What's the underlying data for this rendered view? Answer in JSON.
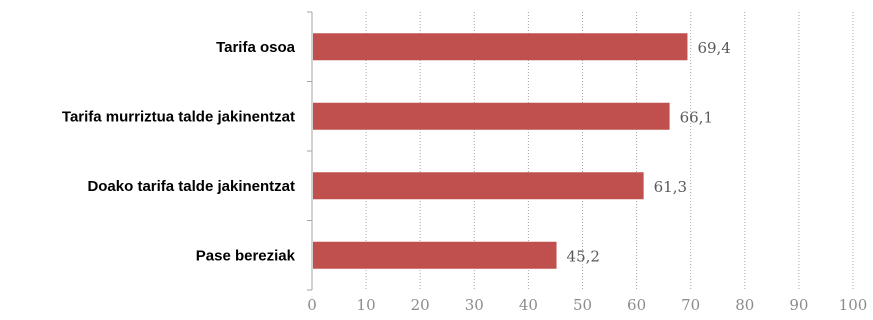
{
  "chart_data": {
    "type": "bar",
    "orientation": "horizontal",
    "categories": [
      "Tarifa osoa",
      "Tarifa murriztua talde jakinentzat",
      "Doako tarifa talde jakinentzat",
      "Pase bereziak"
    ],
    "values": [
      69.4,
      66.1,
      61.3,
      45.2
    ],
    "value_labels": [
      "69,4",
      "66,1",
      "61,3",
      "45,2"
    ],
    "xlim": [
      0,
      100
    ],
    "x_ticks": [
      "0",
      "10",
      "20",
      "30",
      "40",
      "50",
      "60",
      "70",
      "80",
      "90",
      "100"
    ],
    "grid": true,
    "legend": "none",
    "bar_color": "#c0504d"
  }
}
